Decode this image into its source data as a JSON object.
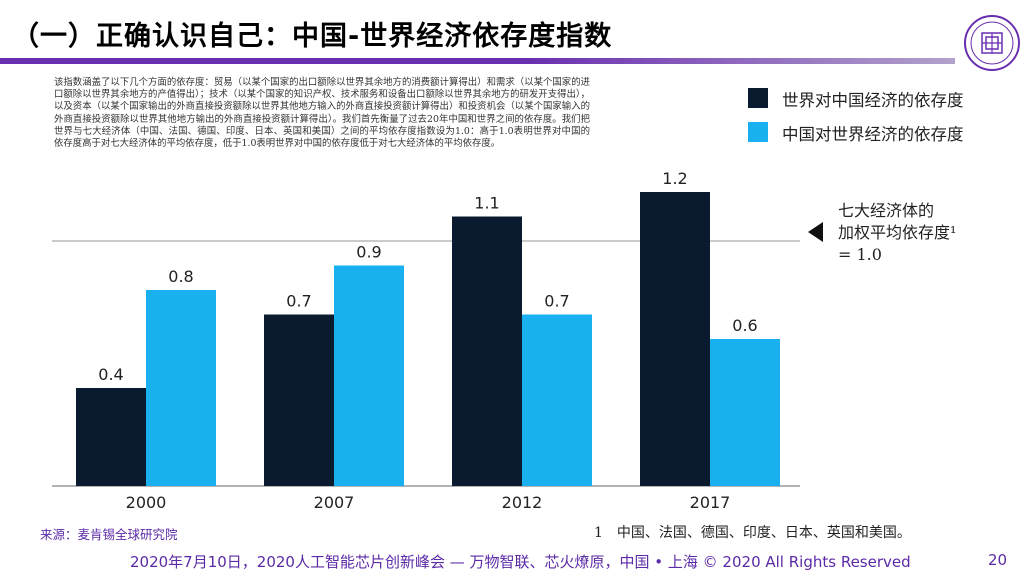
{
  "slide": {
    "title": "（一）正确认识自己：中国-世界经济依存度指数",
    "description": "该指数涵盖了以下几个方面的依存度：贸易（以某个国家的出口额除以世界其余地方的消费额计算得出）和需求（以某个国家的进口额除以世界其余地方的产值得出）；技术（以某个国家的知识产权、技术服务和设备出口额除以世界其余地方的研发开支得出），以及资本（以某个国家输出的外商直接投资额除以世界其他地方输入的外商直接投资额计算得出）和投资机会（以某个国家输入的外商直接投资额除以世界其他地方输出的外商直接投资额计算得出）。我们首先衡量了过去20年中国和世界之间的依存度。我们把世界与七大经济体（中国、法国、德国、印度、日本、英国和美国）之间的平均依存度指数设为1.0：高于1.0表明世界对中国的依存度高于对七大经济体的平均依存度，低于1.0表明世界对中国的依存度低于对七大经济体的平均依存度。",
    "reference_label_line1": "七大经济体的",
    "reference_label_line2": "加权平均依存度¹",
    "reference_label_line3": "= 1.0",
    "source": "来源：麦肯锡全球研究院",
    "footnote": "1　中国、法国、德国、印度、日本、英国和美国。",
    "footer": "2020年7月10日，2020人工智能芯片创新峰会 — 万物智联、芯火燎原，中国 • 上海 © 2020 All Rights Reserved",
    "page_number": "20",
    "logo_icon": "university-seal-icon"
  },
  "colors": {
    "world_on_china": "#0b1b2f",
    "china_on_world": "#19b0f0",
    "accent": "#6a2fb0",
    "reference_line": "#b8b8b8"
  },
  "chart_data": {
    "type": "bar",
    "categories": [
      "2000",
      "2007",
      "2012",
      "2017"
    ],
    "series": [
      {
        "name": "世界对中国经济的依存度",
        "values": [
          0.4,
          0.7,
          1.1,
          1.2
        ],
        "value_labels": [
          "0.4",
          "0.7",
          "1.1",
          "1.2"
        ]
      },
      {
        "name": "中国对世界经济的依存度",
        "values": [
          0.8,
          0.9,
          0.7,
          0.6
        ],
        "value_labels": [
          "0.8",
          "0.9",
          "0.7",
          "0.6"
        ]
      }
    ],
    "reference_value": 1.0,
    "ylim": [
      0,
      1.2
    ],
    "grid": false,
    "legend_position": "top-right",
    "xlabel": "",
    "ylabel": ""
  }
}
